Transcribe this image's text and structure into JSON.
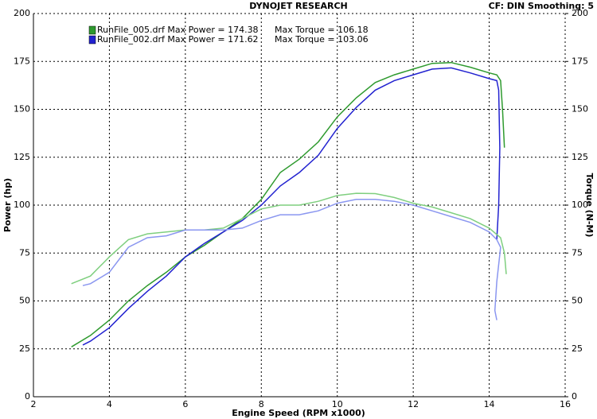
{
  "chart_data": {
    "type": "line",
    "title": "DYNOJET RESEARCH",
    "subtitle": "CF: DIN  Smoothing: 5",
    "x_label": "Engine Speed (RPM x1000)",
    "y_label": "Power (hp)",
    "y2_label": "Torque (N-M)",
    "xlim": [
      2,
      16
    ],
    "xticks": [
      2,
      4,
      6,
      8,
      10,
      12,
      14,
      16
    ],
    "ylim": [
      0,
      200
    ],
    "yticks": [
      0,
      25,
      50,
      75,
      100,
      125,
      150,
      175,
      200
    ],
    "y2lim": [
      0,
      200
    ],
    "y2ticks": [
      0,
      25,
      50,
      75,
      100,
      125,
      150,
      175,
      200
    ],
    "grid": true,
    "series": [
      {
        "name": "RunFile_005.drf Max Power = 174.38",
        "color": "#2e9a2e",
        "x": [
          3.0,
          3.5,
          4.0,
          4.5,
          5.0,
          5.5,
          6.0,
          6.5,
          7.0,
          7.5,
          8.0,
          8.5,
          9.0,
          9.5,
          10.0,
          10.5,
          11.0,
          11.5,
          12.0,
          12.5,
          13.0,
          13.5,
          14.0,
          14.2,
          14.3,
          14.35,
          14.4
        ],
        "values": [
          26,
          32,
          40,
          50,
          58,
          65,
          73,
          79,
          86,
          93,
          103,
          117,
          124,
          133,
          146,
          156,
          164,
          168,
          171,
          174,
          174.4,
          172,
          169,
          168,
          165,
          150,
          130
        ]
      },
      {
        "name": "RunFile_002.drf Max Power = 171.62",
        "color": "#2222d0",
        "x": [
          3.3,
          3.5,
          4.0,
          4.5,
          5.0,
          5.5,
          6.0,
          6.5,
          7.0,
          7.5,
          8.0,
          8.5,
          9.0,
          9.5,
          10.0,
          10.5,
          11.0,
          11.5,
          12.0,
          12.5,
          13.0,
          13.5,
          14.0,
          14.2,
          14.25,
          14.28,
          14.25,
          14.2
        ],
        "values": [
          27,
          29,
          36,
          46,
          55,
          63,
          73,
          80,
          86,
          92,
          100,
          110,
          117,
          126,
          140,
          151,
          160,
          165,
          168,
          171,
          171.6,
          169,
          166,
          165,
          160,
          130,
          100,
          82
        ]
      },
      {
        "name": "Max Torque = 106.18",
        "color": "#7fcf7f",
        "axis": "y2",
        "x": [
          3.0,
          3.5,
          4.0,
          4.5,
          5.0,
          5.5,
          6.0,
          6.5,
          7.0,
          7.5,
          8.0,
          8.5,
          9.0,
          9.5,
          10.0,
          10.5,
          11.0,
          11.5,
          12.0,
          12.5,
          13.0,
          13.5,
          14.0,
          14.3,
          14.4,
          14.45
        ],
        "values": [
          59,
          63,
          73,
          82,
          85,
          86,
          87,
          87,
          88,
          93,
          98,
          100,
          100,
          102,
          105,
          106.2,
          106,
          104,
          101,
          99,
          96,
          93,
          88,
          83,
          75,
          64
        ]
      },
      {
        "name": "Max Torque = 103.06",
        "color": "#8a96f0",
        "axis": "y2",
        "x": [
          3.3,
          3.5,
          4.0,
          4.5,
          5.0,
          5.5,
          6.0,
          6.5,
          7.0,
          7.5,
          8.0,
          8.5,
          9.0,
          9.5,
          10.0,
          10.5,
          11.0,
          11.5,
          12.0,
          12.5,
          13.0,
          13.5,
          14.0,
          14.2,
          14.3,
          14.2,
          14.15,
          14.2
        ],
        "values": [
          58,
          59,
          65,
          78,
          83,
          84,
          87,
          87,
          87,
          88,
          92,
          95,
          95,
          97,
          101,
          103,
          103,
          102,
          100,
          97,
          94,
          91,
          86,
          82,
          78,
          60,
          45,
          40
        ]
      }
    ]
  }
}
